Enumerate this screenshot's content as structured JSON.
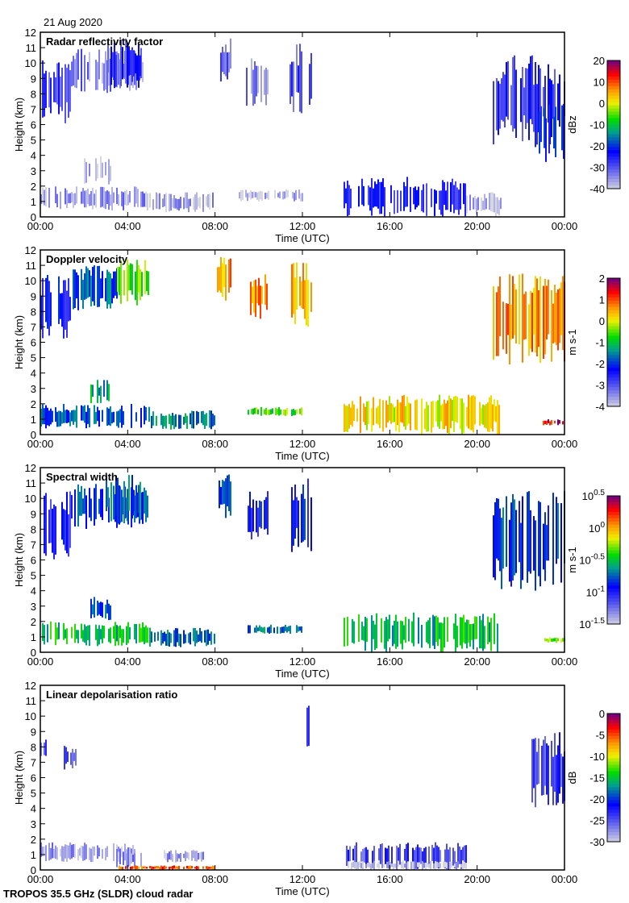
{
  "date": "21 Aug 2020",
  "footer": "TROPOS 35.5 GHz (SLDR) cloud radar",
  "chart_data": [
    {
      "type": "heatmap",
      "title": "Radar reflectivity factor",
      "xlabel": "Time (UTC)",
      "ylabel": "Height (km)",
      "xticks": [
        "00:00",
        "04:00",
        "08:00",
        "12:00",
        "16:00",
        "20:00",
        "00:00"
      ],
      "xlim": [
        0,
        24
      ],
      "ylim": [
        0,
        12
      ],
      "yticks": [
        "0",
        "1",
        "2",
        "3",
        "4",
        "5",
        "6",
        "7",
        "8",
        "9",
        "10",
        "11",
        "12"
      ],
      "colorbar": {
        "label": "dBz",
        "range": [
          -40,
          20
        ],
        "ticks": [
          "20",
          "10",
          "0",
          "-10",
          "-20",
          "-30",
          "-40"
        ],
        "colormap": "gray-blue-green-yellow-red-purple"
      },
      "regions": [
        {
          "t": [
            0,
            1.4
          ],
          "h": [
            6,
            10.5
          ],
          "v": -28
        },
        {
          "t": [
            1.4,
            5
          ],
          "h": [
            8,
            11
          ],
          "v": -33
        },
        {
          "t": [
            3,
            4.6
          ],
          "h": [
            8.3,
            11.6
          ],
          "v": -27
        },
        {
          "t": [
            8.1,
            8.7
          ],
          "h": [
            8.7,
            11.6
          ],
          "v": -30
        },
        {
          "t": [
            9.4,
            10.4
          ],
          "h": [
            7.2,
            10.5
          ],
          "v": -33
        },
        {
          "t": [
            11.4,
            12.4
          ],
          "h": [
            6.5,
            11.3
          ],
          "v": -29
        },
        {
          "t": [
            0,
            5
          ],
          "h": [
            0.4,
            2
          ],
          "v": -35
        },
        {
          "t": [
            2,
            3.2
          ],
          "h": [
            2,
            4
          ],
          "v": -38
        },
        {
          "t": [
            5,
            8
          ],
          "h": [
            0.3,
            1.6
          ],
          "v": -36
        },
        {
          "t": [
            9,
            12
          ],
          "h": [
            1,
            1.8
          ],
          "v": -37
        },
        {
          "t": [
            13.9,
            19.5
          ],
          "h": [
            0,
            2.6
          ],
          "v": -25
        },
        {
          "t": [
            19.5,
            21.2
          ],
          "h": [
            0,
            1.6
          ],
          "v": -38
        },
        {
          "t": [
            20.7,
            24
          ],
          "h": [
            4.5,
            10.5
          ],
          "v": -26
        },
        {
          "t": [
            22.8,
            24
          ],
          "h": [
            3.5,
            7.5
          ],
          "v": -20
        }
      ]
    },
    {
      "type": "heatmap",
      "title": "Doppler velocity",
      "xlabel": "Time (UTC)",
      "ylabel": "Height (km)",
      "xticks": [
        "00:00",
        "04:00",
        "08:00",
        "12:00",
        "16:00",
        "20:00",
        "00:00"
      ],
      "xlim": [
        0,
        24
      ],
      "ylim": [
        0,
        12
      ],
      "yticks": [
        "0",
        "1",
        "2",
        "3",
        "4",
        "5",
        "6",
        "7",
        "8",
        "9",
        "10",
        "11",
        "12"
      ],
      "colorbar": {
        "label": "m s-1",
        "range": [
          -4,
          2
        ],
        "ticks": [
          "2",
          "1",
          "0",
          "-1",
          "-2",
          "-3",
          "-4"
        ],
        "colormap": "blue-green-yellow-red-purple"
      },
      "regions": [
        {
          "t": [
            0,
            1.4
          ],
          "h": [
            6,
            10.5
          ],
          "v": -2.3
        },
        {
          "t": [
            1.4,
            3.5
          ],
          "h": [
            8,
            11
          ],
          "v": -1.8
        },
        {
          "t": [
            3.5,
            5
          ],
          "h": [
            8.3,
            11.6
          ],
          "v": -0.5
        },
        {
          "t": [
            8.1,
            8.7
          ],
          "h": [
            8.7,
            11.6
          ],
          "v": 0.6
        },
        {
          "t": [
            9.6,
            10.4
          ],
          "h": [
            7.5,
            10.5
          ],
          "v": 0.8
        },
        {
          "t": [
            11.4,
            12.4
          ],
          "h": [
            7,
            11.3
          ],
          "v": 0.4
        },
        {
          "t": [
            0,
            5
          ],
          "h": [
            0.4,
            2
          ],
          "v": -1.8
        },
        {
          "t": [
            2.3,
            3.2
          ],
          "h": [
            2,
            3.6
          ],
          "v": -1.2
        },
        {
          "t": [
            5,
            8
          ],
          "h": [
            0.3,
            1.6
          ],
          "v": -1.5
        },
        {
          "t": [
            9.5,
            12
          ],
          "h": [
            1.2,
            1.8
          ],
          "v": -0.5
        },
        {
          "t": [
            13.9,
            21
          ],
          "h": [
            0,
            2.6
          ],
          "v": 0.2
        },
        {
          "t": [
            20.7,
            24
          ],
          "h": [
            4.5,
            10.5
          ],
          "v": 0.7
        },
        {
          "t": [
            23,
            24
          ],
          "h": [
            0.6,
            1
          ],
          "v": 1.5
        }
      ]
    },
    {
      "type": "heatmap",
      "title": "Spectral width",
      "xlabel": "Time (UTC)",
      "ylabel": "Height (km)",
      "xticks": [
        "00:00",
        "04:00",
        "08:00",
        "12:00",
        "16:00",
        "20:00",
        "00:00"
      ],
      "xlim": [
        0,
        24
      ],
      "ylim": [
        0,
        12
      ],
      "yticks": [
        "0",
        "1",
        "2",
        "3",
        "4",
        "5",
        "6",
        "7",
        "8",
        "9",
        "10",
        "11",
        "12"
      ],
      "colorbar": {
        "label": "m s-1",
        "scale": "log",
        "range": [
          -1.5,
          0.5
        ],
        "ticks": [
          "0.5",
          "0",
          "-0.5",
          "-1",
          "-1.5"
        ],
        "colormap": "gray-blue-green-yellow-red-purple"
      },
      "regions": [
        {
          "t": [
            0,
            1.4
          ],
          "h": [
            6,
            10.5
          ],
          "v": -1.0
        },
        {
          "t": [
            1.4,
            5
          ],
          "h": [
            8,
            11
          ],
          "v": -0.8
        },
        {
          "t": [
            3,
            4.6
          ],
          "h": [
            8.3,
            11.6
          ],
          "v": -0.7
        },
        {
          "t": [
            8.1,
            8.7
          ],
          "h": [
            8.7,
            11.6
          ],
          "v": -0.8
        },
        {
          "t": [
            9.4,
            10.4
          ],
          "h": [
            7.2,
            10.5
          ],
          "v": -0.9
        },
        {
          "t": [
            11.4,
            12.4
          ],
          "h": [
            6.5,
            11.3
          ],
          "v": -0.9
        },
        {
          "t": [
            0,
            5
          ],
          "h": [
            0.4,
            2
          ],
          "v": -0.5
        },
        {
          "t": [
            2.3,
            3.2
          ],
          "h": [
            2,
            3.6
          ],
          "v": -0.8
        },
        {
          "t": [
            5,
            8
          ],
          "h": [
            0.3,
            1.6
          ],
          "v": -0.7
        },
        {
          "t": [
            9.5,
            12
          ],
          "h": [
            1.2,
            1.8
          ],
          "v": -0.7
        },
        {
          "t": [
            13.9,
            21
          ],
          "h": [
            0,
            2.6
          ],
          "v": -0.5
        },
        {
          "t": [
            20.7,
            24
          ],
          "h": [
            4,
            10.5
          ],
          "v": -0.8
        },
        {
          "t": [
            23,
            24
          ],
          "h": [
            0.6,
            1
          ],
          "v": -0.3
        }
      ]
    },
    {
      "type": "heatmap",
      "title": "Linear depolarisation ratio",
      "xlabel": "Time (UTC)",
      "ylabel": "Height (km)",
      "xticks": [
        "00:00",
        "04:00",
        "08:00",
        "12:00",
        "16:00",
        "20:00",
        "00:00"
      ],
      "xlim": [
        0,
        24
      ],
      "ylim": [
        0,
        12
      ],
      "yticks": [
        "0",
        "1",
        "2",
        "3",
        "4",
        "5",
        "6",
        "7",
        "8",
        "9",
        "10",
        "11",
        "12"
      ],
      "colorbar": {
        "label": "dB",
        "range": [
          -30,
          0
        ],
        "ticks": [
          "0",
          "-5",
          "-10",
          "-15",
          "-20",
          "-25",
          "-30"
        ],
        "colormap": "gray-blue-green-yellow-red-purple"
      },
      "regions": [
        {
          "t": [
            0,
            0.3
          ],
          "h": [
            7,
            8.6
          ],
          "v": -24
        },
        {
          "t": [
            1,
            1.8
          ],
          "h": [
            6.5,
            8.2
          ],
          "v": -24
        },
        {
          "t": [
            0,
            4.5
          ],
          "h": [
            0.5,
            1.8
          ],
          "v": -28
        },
        {
          "t": [
            3.4,
            4.6
          ],
          "h": [
            0,
            1.5
          ],
          "v": -27
        },
        {
          "t": [
            5.5,
            7.5
          ],
          "h": [
            0.5,
            1.3
          ],
          "v": -28
        },
        {
          "t": [
            12.2,
            12.4
          ],
          "h": [
            7,
            11
          ],
          "v": -23
        },
        {
          "t": [
            14,
            19.5
          ],
          "h": [
            0,
            1.8
          ],
          "v": -24
        },
        {
          "t": [
            14,
            19.5
          ],
          "h": [
            0,
            0.6
          ],
          "v": -29
        },
        {
          "t": [
            22.5,
            24
          ],
          "h": [
            4,
            9
          ],
          "v": -24
        },
        {
          "t": [
            3.5,
            8
          ],
          "h": [
            0,
            0.3
          ],
          "v": -5
        }
      ]
    }
  ]
}
